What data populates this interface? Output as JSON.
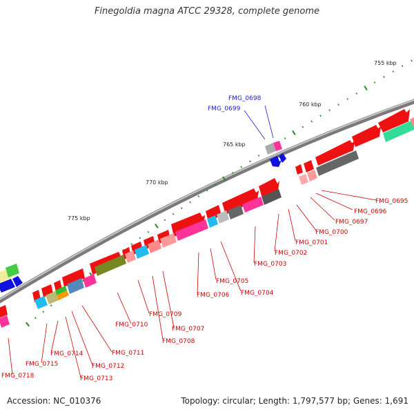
{
  "title": "Finegoldia magna ATCC 29328, complete genome",
  "footer": {
    "accession": "Accession: NC_010376",
    "summary": "Topology: circular; Length: 1,797,577 bp; Genes: 1,691"
  },
  "colors": {
    "backbone": "#8a8a8a",
    "forward_gene": "#ee1111",
    "reverse_gene": "#1111dd",
    "tick": "#228822",
    "label_red": "#cc0000",
    "label_blue": "#1a1acc"
  },
  "scale_ticks": [
    {
      "label": "755 kbp"
    },
    {
      "label": "760 kbp"
    },
    {
      "label": "765 kbp"
    },
    {
      "label": "770 kbp"
    },
    {
      "label": "775 kbp"
    }
  ],
  "gene_labels": [
    {
      "text": "FMG_0698",
      "strand": "reverse"
    },
    {
      "text": "FMG_0699",
      "strand": "reverse"
    },
    {
      "text": "FMG_0695",
      "strand": "forward"
    },
    {
      "text": "FMG_0696",
      "strand": "forward"
    },
    {
      "text": "FMG_0697",
      "strand": "forward"
    },
    {
      "text": "FMG_0700",
      "strand": "forward"
    },
    {
      "text": "FMG_0701",
      "strand": "forward"
    },
    {
      "text": "FMG_0702",
      "strand": "forward"
    },
    {
      "text": "FMG_0703",
      "strand": "forward"
    },
    {
      "text": "FMG_0704",
      "strand": "forward"
    },
    {
      "text": "FMG_0705",
      "strand": "forward"
    },
    {
      "text": "FMG_0706",
      "strand": "forward"
    },
    {
      "text": "FMG_0707",
      "strand": "forward"
    },
    {
      "text": "FMG_0708",
      "strand": "forward"
    },
    {
      "text": "FMG_0709",
      "strand": "forward"
    },
    {
      "text": "FMG_0710",
      "strand": "forward"
    },
    {
      "text": "FMG_0711",
      "strand": "forward"
    },
    {
      "text": "FMG_0712",
      "strand": "forward"
    },
    {
      "text": "FMG_0713",
      "strand": "forward"
    },
    {
      "text": "FMG_0714",
      "strand": "forward"
    },
    {
      "text": "FMG_0715",
      "strand": "forward"
    },
    {
      "text": "FMG_0718",
      "strand": "forward"
    }
  ]
}
